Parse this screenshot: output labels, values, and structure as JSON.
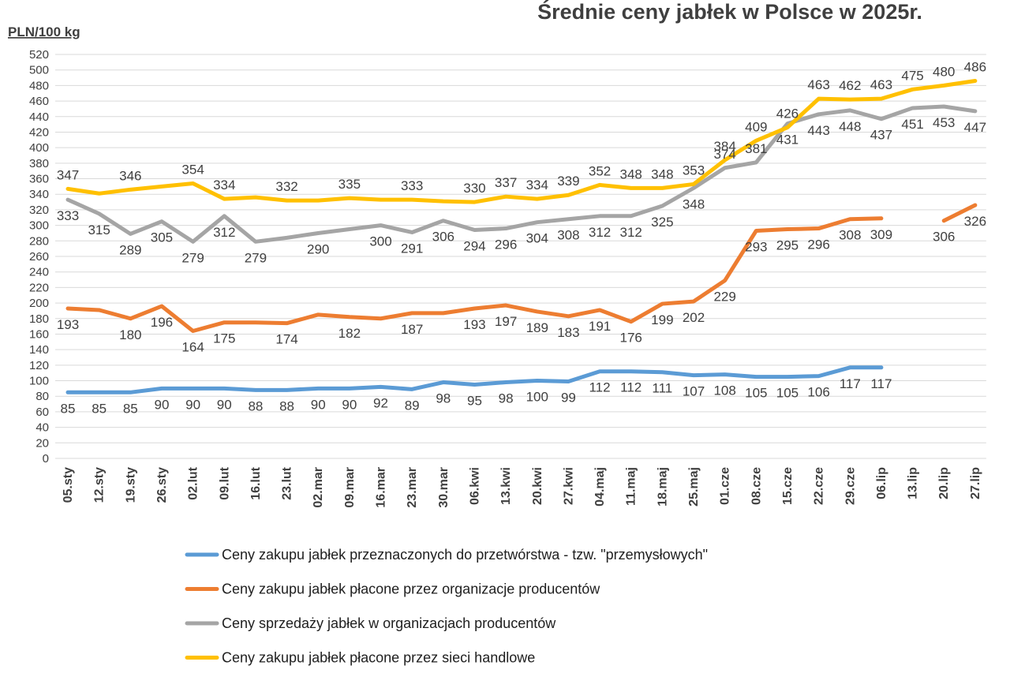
{
  "chart_data": {
    "type": "line",
    "title": "Średnie ceny jabłek w Polsce w 2025r.",
    "ylabel": "PLN/100 kg",
    "xlabel": "",
    "ylim": [
      0,
      520
    ],
    "ytick_step": 20,
    "grid": true,
    "legend_position": "bottom",
    "categories": [
      "05.sty",
      "12.sty",
      "19.sty",
      "26.sty",
      "02.lut",
      "09.lut",
      "16.lut",
      "23.lut",
      "02.mar",
      "09.mar",
      "16.mar",
      "23.mar",
      "30.mar",
      "06.kwi",
      "13.kwi",
      "20.kwi",
      "27.kwi",
      "04.maj",
      "11.maj",
      "18.maj",
      "25.maj",
      "01.cze",
      "08.cze",
      "15.cze",
      "22.cze",
      "29.cze",
      "06.lip",
      "13.lip",
      "20.lip",
      "27.lip"
    ],
    "series": [
      {
        "name": "Ceny zakupu jabłek przeznaczonych do przetwórstwa - tzw. \"przemysłowych\"",
        "color": "#5b9bd5",
        "values": [
          85,
          85,
          85,
          90,
          90,
          90,
          88,
          88,
          90,
          90,
          92,
          89,
          98,
          95,
          98,
          100,
          99,
          112,
          112,
          111,
          107,
          108,
          105,
          105,
          106,
          117,
          117,
          null,
          null,
          null
        ],
        "labels": [
          "85",
          "85",
          "85",
          "90",
          "90",
          "90",
          "88",
          "88",
          "90",
          "90",
          "92",
          "89",
          "98",
          "95",
          "98",
          "100",
          "99",
          "112",
          "112",
          "111",
          "107",
          "108",
          "105",
          "105",
          "106",
          "117",
          "117",
          null,
          null,
          null
        ]
      },
      {
        "name": "Ceny zakupu jabłek płacone przez organizacje  producentów",
        "color": "#ed7d31",
        "values": [
          193,
          191,
          180,
          196,
          164,
          175,
          175,
          174,
          185,
          182,
          180,
          187,
          187,
          193,
          197,
          189,
          183,
          191,
          176,
          199,
          202,
          229,
          293,
          295,
          296,
          308,
          309,
          null,
          306,
          326
        ],
        "labels": [
          "193",
          null,
          "180",
          "196",
          "164",
          "175",
          null,
          "174",
          null,
          "182",
          null,
          "187",
          null,
          "193",
          "197",
          "189",
          "183",
          "191",
          "176",
          "199",
          "202",
          "229",
          "293",
          "295",
          "296",
          "308",
          "309",
          null,
          "306",
          "326"
        ]
      },
      {
        "name": "Ceny sprzedaży jabłek w organizacjach  producentów",
        "color": "#a5a5a5",
        "values": [
          333,
          315,
          289,
          305,
          279,
          312,
          279,
          284,
          290,
          295,
          300,
          291,
          306,
          294,
          296,
          304,
          308,
          312,
          312,
          325,
          348,
          374,
          381,
          431,
          443,
          448,
          437,
          451,
          453,
          447
        ],
        "labels": [
          "333",
          "315",
          "289",
          "305",
          "279",
          "312",
          "279",
          null,
          "290",
          null,
          "300",
          "291",
          "306",
          "294",
          "296",
          "304",
          "308",
          "312",
          "312",
          "325",
          "348",
          "374",
          "381",
          "431",
          "443",
          "448",
          "437",
          "451",
          "453",
          "447"
        ]
      },
      {
        "name": "Ceny zakupu jabłek płacone przez sieci handlowe",
        "color": "#ffc000",
        "values": [
          347,
          341,
          346,
          350,
          354,
          334,
          336,
          332,
          332,
          335,
          333,
          333,
          331,
          330,
          337,
          334,
          339,
          352,
          348,
          348,
          353,
          384,
          409,
          426,
          463,
          462,
          463,
          475,
          480,
          486
        ],
        "labels": [
          "347",
          null,
          "346",
          null,
          "354",
          "334",
          null,
          "332",
          null,
          "335",
          null,
          "333",
          null,
          "330",
          "337",
          "334",
          "339",
          "352",
          "348",
          "348",
          "353",
          "384",
          "409",
          "426",
          "463",
          "462",
          "463",
          "475",
          "480",
          "486"
        ]
      }
    ]
  }
}
